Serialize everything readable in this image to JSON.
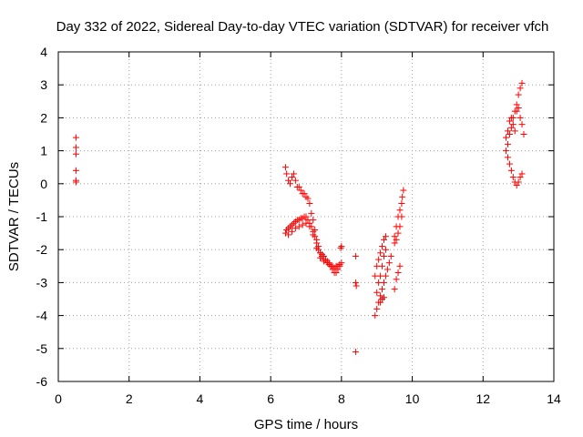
{
  "chart_data": {
    "type": "scatter",
    "title": "Day 332 of 2022, Sidereal Day-to-day VTEC variation (SDTVAR) for receiver vfch",
    "xlabel": "GPS time / hours",
    "ylabel": "SDTVAR / TECUs",
    "xlim": [
      0,
      14
    ],
    "ylim": [
      -6,
      4
    ],
    "xticks": [
      0,
      2,
      4,
      6,
      8,
      10,
      12,
      14
    ],
    "yticks": [
      -6,
      -5,
      -4,
      -3,
      -2,
      -1,
      0,
      1,
      2,
      3,
      4
    ],
    "grid": true,
    "marker": "+",
    "color": "#ff0000",
    "series": [
      {
        "name": "vfch",
        "points": [
          [
            0.5,
            1.4
          ],
          [
            0.5,
            1.1
          ],
          [
            0.5,
            0.9
          ],
          [
            0.5,
            0.4
          ],
          [
            0.5,
            0.1
          ],
          [
            0.5,
            0.05
          ],
          [
            6.42,
            0.5
          ],
          [
            6.45,
            0.3
          ],
          [
            6.5,
            0.1
          ],
          [
            6.55,
            0.0
          ],
          [
            6.6,
            0.2
          ],
          [
            6.65,
            0.3
          ],
          [
            6.7,
            0.1
          ],
          [
            6.75,
            -0.1
          ],
          [
            6.8,
            -0.1
          ],
          [
            6.85,
            -0.2
          ],
          [
            6.9,
            -0.3
          ],
          [
            6.95,
            -0.3
          ],
          [
            7.0,
            -0.4
          ],
          [
            7.05,
            -0.45
          ],
          [
            7.1,
            -0.6
          ],
          [
            7.15,
            -0.9
          ],
          [
            7.2,
            -1.1
          ],
          [
            7.25,
            -1.4
          ],
          [
            7.3,
            -1.7
          ],
          [
            7.35,
            -1.9
          ],
          [
            7.4,
            -2.1
          ],
          [
            7.45,
            -2.2
          ],
          [
            7.5,
            -2.3
          ],
          [
            7.55,
            -2.3
          ],
          [
            7.6,
            -2.4
          ],
          [
            7.65,
            -2.45
          ],
          [
            7.7,
            -2.5
          ],
          [
            7.75,
            -2.6
          ],
          [
            7.8,
            -2.7
          ],
          [
            7.85,
            -2.7
          ],
          [
            7.9,
            -2.6
          ],
          [
            7.95,
            -2.5
          ],
          [
            8.0,
            -2.4
          ],
          [
            6.42,
            -1.5
          ],
          [
            6.45,
            -1.4
          ],
          [
            6.5,
            -1.35
          ],
          [
            6.55,
            -1.3
          ],
          [
            6.6,
            -1.25
          ],
          [
            6.65,
            -1.2
          ],
          [
            6.7,
            -1.15
          ],
          [
            6.75,
            -1.1
          ],
          [
            6.8,
            -1.1
          ],
          [
            6.85,
            -1.05
          ],
          [
            6.9,
            -1.05
          ],
          [
            6.95,
            -1.0
          ],
          [
            7.0,
            -1.0
          ],
          [
            7.05,
            -1.1
          ],
          [
            7.1,
            -1.2
          ],
          [
            7.15,
            -1.3
          ],
          [
            7.2,
            -1.45
          ],
          [
            7.25,
            -1.6
          ],
          [
            7.3,
            -1.8
          ],
          [
            7.35,
            -2.0
          ],
          [
            7.4,
            -2.1
          ],
          [
            7.45,
            -2.15
          ],
          [
            7.5,
            -2.2
          ],
          [
            7.55,
            -2.3
          ],
          [
            7.6,
            -2.35
          ],
          [
            7.65,
            -2.4
          ],
          [
            7.7,
            -2.5
          ],
          [
            7.75,
            -2.5
          ],
          [
            7.8,
            -2.55
          ],
          [
            7.85,
            -2.5
          ],
          [
            7.9,
            -2.5
          ],
          [
            7.95,
            -2.45
          ],
          [
            6.5,
            -1.55
          ],
          [
            6.6,
            -1.45
          ],
          [
            6.7,
            -1.35
          ],
          [
            6.8,
            -1.3
          ],
          [
            6.9,
            -1.25
          ],
          [
            7.0,
            -1.2
          ],
          [
            7.1,
            -1.3
          ],
          [
            7.2,
            -1.55
          ],
          [
            7.3,
            -1.95
          ],
          [
            7.4,
            -2.25
          ],
          [
            7.5,
            -2.35
          ],
          [
            8.0,
            -1.9
          ],
          [
            7.98,
            -1.95
          ],
          [
            8.4,
            -2.2
          ],
          [
            8.4,
            -3.0
          ],
          [
            8.42,
            -3.1
          ],
          [
            8.4,
            -5.1
          ],
          [
            8.95,
            -4.0
          ],
          [
            9.0,
            -3.8
          ],
          [
            9.05,
            -3.6
          ],
          [
            9.1,
            -3.4
          ],
          [
            9.15,
            -3.2
          ],
          [
            9.2,
            -3.0
          ],
          [
            9.25,
            -2.8
          ],
          [
            9.3,
            -2.6
          ],
          [
            9.35,
            -2.4
          ],
          [
            9.4,
            -2.2
          ],
          [
            8.95,
            -2.8
          ],
          [
            9.0,
            -2.5
          ],
          [
            9.05,
            -2.3
          ],
          [
            9.1,
            -2.1
          ],
          [
            9.15,
            -1.9
          ],
          [
            9.2,
            -1.7
          ],
          [
            9.25,
            -1.6
          ],
          [
            9.0,
            -3.3
          ],
          [
            9.05,
            -3.0
          ],
          [
            9.1,
            -2.8
          ],
          [
            9.15,
            -2.5
          ],
          [
            9.2,
            -2.2
          ],
          [
            9.25,
            -2.0
          ],
          [
            9.1,
            -3.6
          ],
          [
            9.15,
            -3.5
          ],
          [
            9.2,
            -3.45
          ],
          [
            9.5,
            -3.2
          ],
          [
            9.55,
            -2.9
          ],
          [
            9.6,
            -2.7
          ],
          [
            9.65,
            -2.5
          ],
          [
            9.5,
            -1.6
          ],
          [
            9.55,
            -1.3
          ],
          [
            9.6,
            -1.0
          ],
          [
            9.65,
            -0.8
          ],
          [
            9.7,
            -0.6
          ],
          [
            9.72,
            -0.4
          ],
          [
            9.75,
            -0.2
          ],
          [
            9.5,
            -1.8
          ],
          [
            9.55,
            -1.7
          ],
          [
            9.6,
            -1.5
          ],
          [
            9.65,
            -1.3
          ],
          [
            9.7,
            -1.0
          ],
          [
            12.65,
            1.0
          ],
          [
            12.7,
            1.2
          ],
          [
            12.75,
            1.5
          ],
          [
            12.8,
            1.7
          ],
          [
            12.85,
            2.0
          ],
          [
            12.9,
            2.2
          ],
          [
            12.95,
            2.4
          ],
          [
            13.0,
            2.7
          ],
          [
            13.05,
            2.9
          ],
          [
            13.1,
            3.05
          ],
          [
            12.7,
            0.8
          ],
          [
            12.75,
            0.6
          ],
          [
            12.8,
            0.4
          ],
          [
            12.85,
            0.2
          ],
          [
            12.9,
            0.05
          ],
          [
            12.95,
            -0.05
          ],
          [
            13.0,
            0.05
          ],
          [
            13.05,
            0.2
          ],
          [
            13.1,
            0.3
          ],
          [
            12.8,
            2.0
          ],
          [
            12.85,
            1.8
          ],
          [
            12.9,
            1.6
          ],
          [
            12.95,
            2.2
          ],
          [
            13.0,
            2.3
          ],
          [
            13.05,
            2.0
          ],
          [
            13.1,
            1.8
          ],
          [
            13.15,
            1.5
          ],
          [
            12.65,
            1.4
          ],
          [
            12.7,
            1.6
          ],
          [
            12.75,
            1.9
          ]
        ]
      }
    ]
  }
}
